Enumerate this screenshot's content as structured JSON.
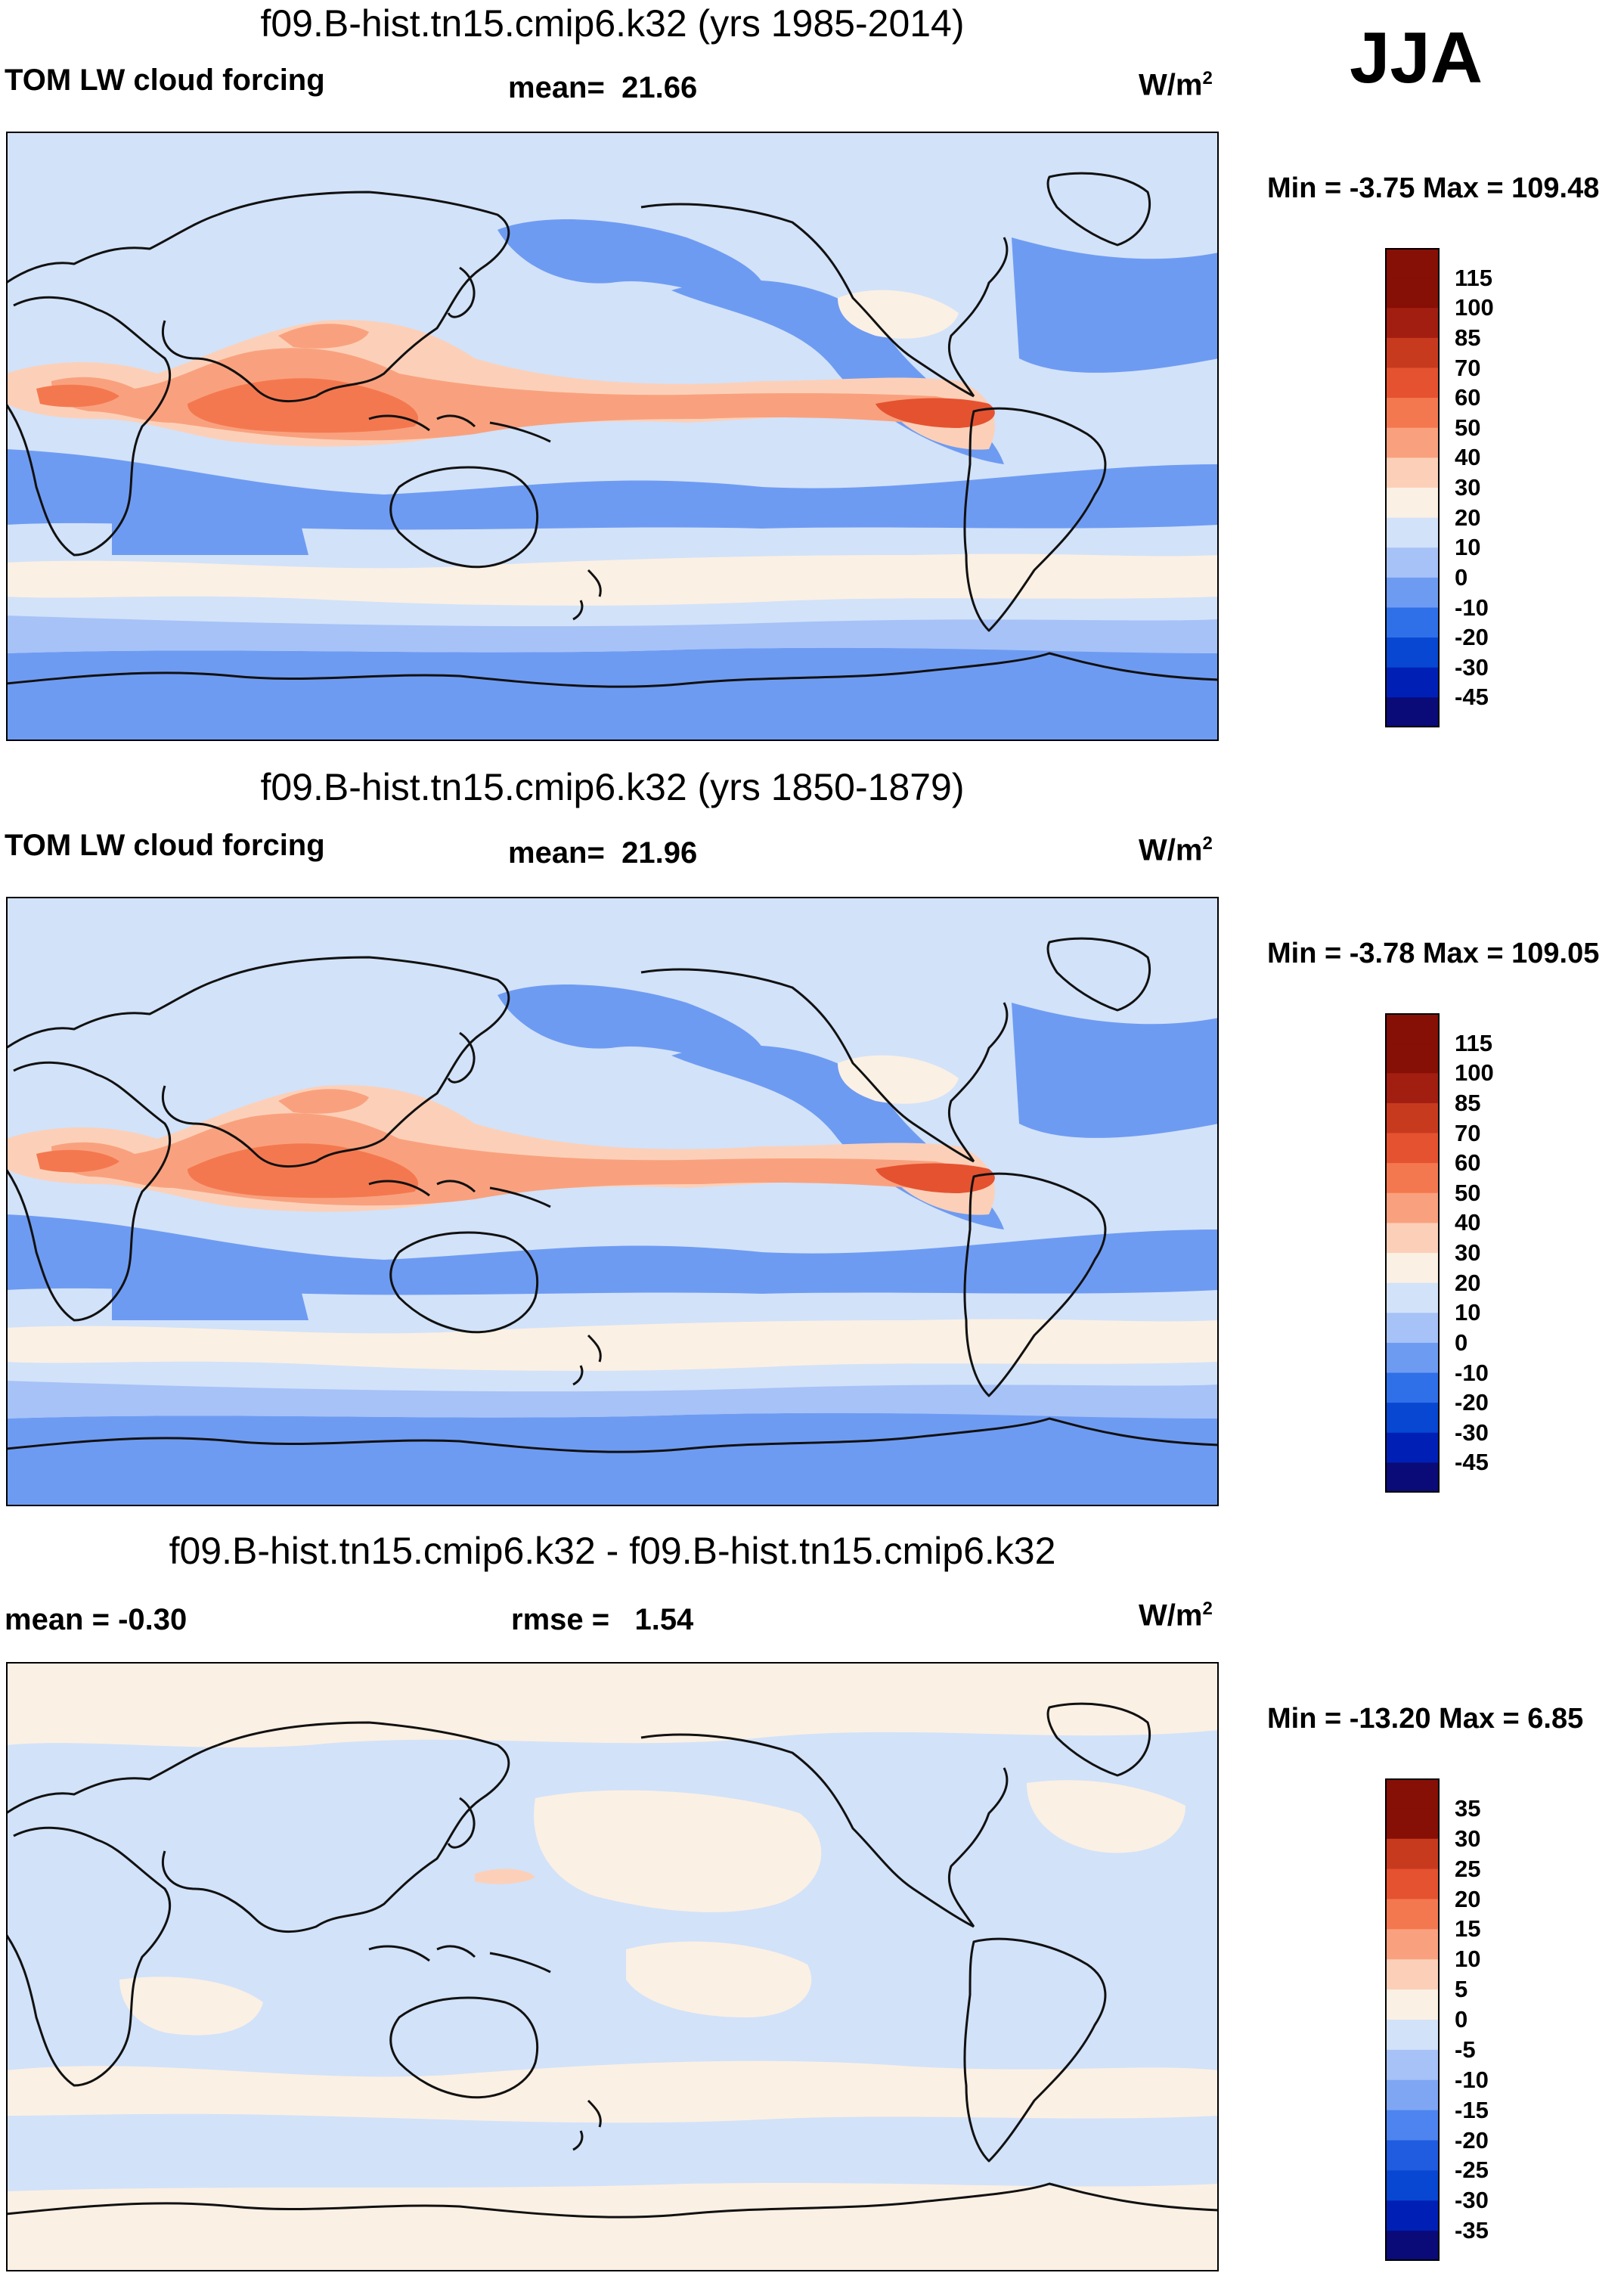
{
  "season": "JJA",
  "colors": {
    "abs": [
      "#0a0a78",
      "#0020b5",
      "#0747d1",
      "#2f6fe8",
      "#6e9bf2",
      "#a6c2f7",
      "#d2e2f9",
      "#fbf0e4",
      "#fcd0b8",
      "#f9a17e",
      "#f4784f",
      "#e55230",
      "#c83a1e",
      "#a21e10",
      "#860f06"
    ],
    "diff": [
      "#0a0a78",
      "#0020b5",
      "#0747d1",
      "#1f5ce0",
      "#4e84ef",
      "#7ea6f3",
      "#a6c2f7",
      "#d2e2f9",
      "#fbf0e4",
      "#fcd0b8",
      "#f9a17e",
      "#f4784f",
      "#e55230",
      "#c83a1e",
      "#860f06"
    ],
    "coast": "#111111"
  },
  "panels": [
    {
      "title": "f09.B-hist.tn15.cmip6.k32 (yrs 1985-2014)",
      "left_label": "TOM LW cloud forcing",
      "stat_label": "mean=",
      "stat_value": "21.66",
      "units": "W/m",
      "units_exp": "2",
      "minmax": "Min =  -3.75 Max = 109.48",
      "levels": [
        "115",
        "100",
        "85",
        "70",
        "60",
        "50",
        "40",
        "30",
        "20",
        "10",
        "0",
        "-10",
        "-20",
        "-30",
        "-45"
      ]
    },
    {
      "title": "f09.B-hist.tn15.cmip6.k32 (yrs 1850-1879)",
      "left_label": "TOM LW cloud forcing",
      "stat_label": "mean=",
      "stat_value": "21.96",
      "units": "W/m",
      "units_exp": "2",
      "minmax": "Min =  -3.78 Max = 109.05",
      "levels": [
        "115",
        "100",
        "85",
        "70",
        "60",
        "50",
        "40",
        "30",
        "20",
        "10",
        "0",
        "-10",
        "-20",
        "-30",
        "-45"
      ]
    },
    {
      "title": "f09.B-hist.tn15.cmip6.k32 - f09.B-hist.tn15.cmip6.k32",
      "left_label": "mean =  -0.30",
      "stat_label": "rmse =",
      "stat_value": "1.54",
      "units": "W/m",
      "units_exp": "2",
      "minmax": "Min = -13.20 Max =   6.85",
      "levels": [
        "35",
        "30",
        "25",
        "20",
        "15",
        "10",
        "5",
        "0",
        "-5",
        "-10",
        "-15",
        "-20",
        "-25",
        "-30",
        "-35"
      ]
    }
  ]
}
